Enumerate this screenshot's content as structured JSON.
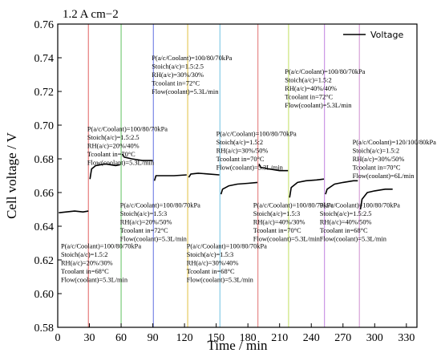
{
  "chart_data": {
    "type": "line",
    "title": "1.2 A cm−2",
    "xlabel": "Time / min",
    "ylabel": "Cell voltage / V",
    "xlim": [
      0,
      340
    ],
    "ylim": [
      0.58,
      0.76
    ],
    "xticks": [
      0,
      30,
      60,
      90,
      120,
      150,
      180,
      210,
      240,
      270,
      300,
      330
    ],
    "yticks": [
      0.58,
      0.6,
      0.62,
      0.64,
      0.66,
      0.68,
      0.7,
      0.72,
      0.74,
      0.76
    ],
    "grid": false,
    "legend_position": "top-right",
    "series": [
      {
        "name": "Voltage",
        "color": "#000000",
        "segments": [
          {
            "x": [
              1,
              8,
              16,
              24,
              29
            ],
            "y": [
              0.648,
              0.6485,
              0.649,
              0.6485,
              0.649
            ]
          },
          {
            "x": [
              30.5,
              32,
              36,
              45,
              55,
              59
            ],
            "y": [
              0.668,
              0.674,
              0.676,
              0.677,
              0.676,
              0.6765
            ]
          },
          {
            "x": [
              61,
              63,
              70,
              80,
              90
            ],
            "y": [
              0.683,
              0.681,
              0.68,
              0.679,
              0.679
            ]
          },
          {
            "x": [
              91.5,
              93,
              100,
              110,
              122
            ],
            "y": [
              0.667,
              0.67,
              0.67,
              0.67,
              0.6705
            ]
          },
          {
            "x": [
              124,
              126,
              133,
              143,
              153
            ],
            "y": [
              0.669,
              0.671,
              0.6715,
              0.671,
              0.6705
            ]
          },
          {
            "x": [
              154.5,
              156,
              162,
              170,
              180,
              189
            ],
            "y": [
              0.659,
              0.662,
              0.664,
              0.665,
              0.6655,
              0.666
            ]
          },
          {
            "x": [
              190.5,
              192,
              200,
              210,
              218
            ],
            "y": [
              0.677,
              0.675,
              0.674,
              0.673,
              0.673
            ]
          },
          {
            "x": [
              219.5,
              221,
              227,
              235,
              245,
              252
            ],
            "y": [
              0.657,
              0.663,
              0.666,
              0.667,
              0.6675,
              0.668
            ]
          },
          {
            "x": [
              253.5,
              255,
              262,
              270,
              280,
              284
            ],
            "y": [
              0.659,
              0.662,
              0.665,
              0.666,
              0.667,
              0.667
            ]
          },
          {
            "x": [
              286.5,
              288,
              293,
              300,
              310,
              317
            ],
            "y": [
              0.65,
              0.656,
              0.66,
              0.661,
              0.662,
              0.662
            ]
          }
        ]
      }
    ],
    "markers": [
      {
        "x": 29,
        "color": "#e06060"
      },
      {
        "x": 60,
        "color": "#60c060"
      },
      {
        "x": 90.5,
        "color": "#6070e0"
      },
      {
        "x": 123,
        "color": "#e0c040"
      },
      {
        "x": 153.5,
        "color": "#70c0e0"
      },
      {
        "x": 189.5,
        "color": "#e07070"
      },
      {
        "x": 218.5,
        "color": "#c0e060"
      },
      {
        "x": 252.5,
        "color": "#c080e0"
      },
      {
        "x": 285.5,
        "color": "#d090d0"
      }
    ],
    "annotations": [
      {
        "x": 3,
        "y": 0.6268,
        "lines": [
          "P(a/c/Coolant)=100/80/70kPa",
          "Stoich(a/c)=1.5:2",
          "RH(a/c)=20%/30%",
          "Tcoolant in=68°C",
          "Flow(coolant)=5.3L/min"
        ]
      },
      {
        "x": 28,
        "y": 0.6965,
        "lines": [
          "P(a/c/Coolant)=100/80/70kPa",
          "Stoich(a/c)=1.5:2.5",
          "RH(a/c)=20%/40%",
          "Tcoolant in=70°C",
          "Flow(coolant)=5.3L/min"
        ]
      },
      {
        "x": 59,
        "y": 0.6512,
        "lines": [
          "P(a/c/Coolant)=100/80/70kPa",
          "Stoich(a/c)=1.5:3",
          "RH(a/c)=20%/50%",
          "Tcoolant in=72°C",
          "Flow(coolant)=5.3L/min"
        ]
      },
      {
        "x": 89,
        "y": 0.7385,
        "lines": [
          "P(a/c/Coolant)=100/80/70kPa",
          "Stoich(a/c)=1.5:2.5",
          "RH(a/c)=30%/30%",
          "Tcoolant in=72°C",
          "Flow(coolant)=5.3L/min"
        ]
      },
      {
        "x": 122,
        "y": 0.6268,
        "lines": [
          "P(a/c/Coolant)=100/80/70kPa",
          "Stoich(a/c)=1.5:3",
          "RH(a/c)=30%/40%",
          "Tcoolant in=68°C",
          "Flow(coolant)=5.3L/min"
        ]
      },
      {
        "x": 150,
        "y": 0.6935,
        "lines": [
          "P(a/c/Coolant)=100/80/70kPa",
          "Stoich(a/c)=1.5:2",
          "RH(a/c)=30%/50%",
          "Tcoolant in=70°C",
          "Flow(coolant)=5.3L/min"
        ]
      },
      {
        "x": 185,
        "y": 0.6512,
        "lines": [
          "P(a/c/Coolant)=100/80/70kPa",
          "Stoich(a/c)=1.5:3",
          "RH(a/c)=40%/30%",
          "Tcoolant in=70°C",
          "Flow(coolant)=5.3L/min"
        ]
      },
      {
        "x": 215,
        "y": 0.7305,
        "lines": [
          "P(a/c/Coolant)=100/80/70kPa",
          "Stoich(a/c)=1.5:2",
          "RH(a/c)=40%/40%",
          "Tcoolant in=72°C",
          "Flow(coolant)=5.3L/min"
        ]
      },
      {
        "x": 248,
        "y": 0.6512,
        "lines": [
          "P(a/c/Coolant)=100/80/70kPa",
          "Stoich(a/c)=1.5:2.5",
          "RH(a/c)=40%/50%",
          "Tcoolant in=68°C",
          "Flow(coolant)=5.3L/min"
        ]
      },
      {
        "x": 279,
        "y": 0.6885,
        "lines": [
          "P(a/c/Coolant)=120/100/80kPa",
          "Stoich(a/c)=1.5:2",
          "RH(a/c)=30%/50%",
          "Tcoolant in=70°C",
          "Flow(coolant)=6L/min"
        ]
      }
    ]
  }
}
